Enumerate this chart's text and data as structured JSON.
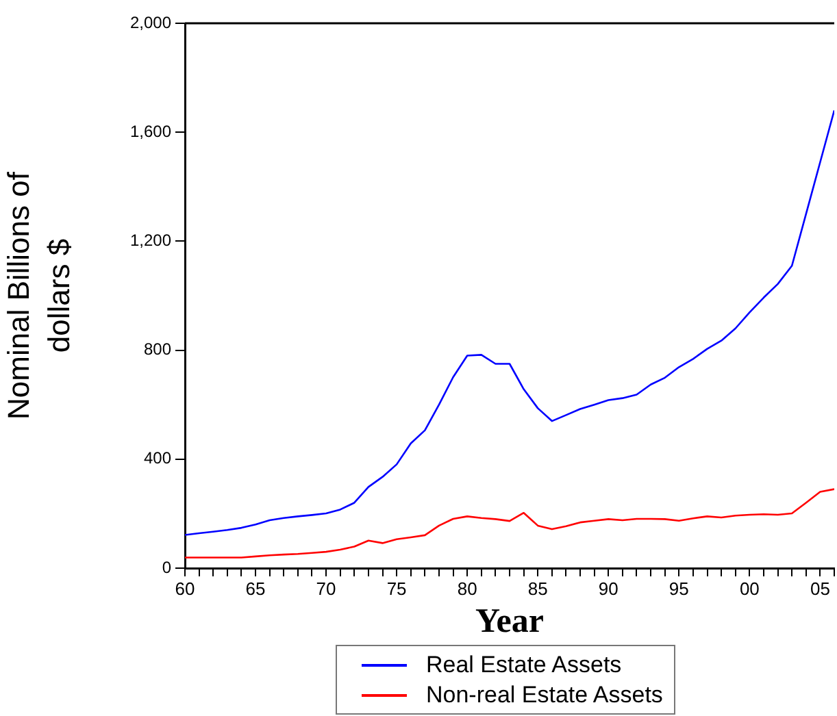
{
  "chart_data": {
    "type": "line",
    "xlabel": "Year",
    "ylabel": "Nominal Billions of dollars $",
    "x": [
      1960,
      1961,
      1962,
      1963,
      1964,
      1965,
      1966,
      1967,
      1968,
      1969,
      1970,
      1971,
      1972,
      1973,
      1974,
      1975,
      1976,
      1977,
      1978,
      1979,
      1980,
      1981,
      1982,
      1983,
      1984,
      1985,
      1986,
      1987,
      1988,
      1989,
      1990,
      1991,
      1992,
      1993,
      1994,
      1995,
      1996,
      1997,
      1998,
      1999,
      2000,
      2001,
      2002,
      2003,
      2004,
      2005,
      2006
    ],
    "series": [
      {
        "name": "Real Estate Assets",
        "color": "#0000ff",
        "values": [
          122,
          128,
          134,
          140,
          148,
          160,
          176,
          184,
          190,
          195,
          201,
          215,
          240,
          298,
          335,
          381,
          458,
          506,
          600,
          701,
          780,
          783,
          750,
          750,
          657,
          587,
          540,
          562,
          584,
          600,
          617,
          624,
          637,
          674,
          699,
          738,
          768,
          805,
          835,
          880,
          939,
          993,
          1043,
          1110,
          1300,
          1490,
          1680
        ]
      },
      {
        "name": "Non-real Estate Assets",
        "color": "#ff0000",
        "values": [
          39,
          39,
          39,
          39,
          39,
          43,
          47,
          50,
          52,
          56,
          60,
          68,
          79,
          101,
          92,
          106,
          113,
          121,
          156,
          181,
          190,
          184,
          180,
          173,
          203,
          156,
          143,
          154,
          168,
          174,
          180,
          176,
          181,
          181,
          180,
          174,
          183,
          190,
          186,
          193,
          196,
          198,
          196,
          201,
          240,
          280,
          290
        ]
      }
    ],
    "xlim": [
      1960,
      2006
    ],
    "xticks": [
      {
        "value": 1960,
        "label": "60"
      },
      {
        "value": 1961,
        "label": null
      },
      {
        "value": 1962,
        "label": null
      },
      {
        "value": 1963,
        "label": null
      },
      {
        "value": 1964,
        "label": null
      },
      {
        "value": 1965,
        "label": "65"
      },
      {
        "value": 1966,
        "label": null
      },
      {
        "value": 1967,
        "label": null
      },
      {
        "value": 1968,
        "label": null
      },
      {
        "value": 1969,
        "label": null
      },
      {
        "value": 1970,
        "label": "70"
      },
      {
        "value": 1971,
        "label": null
      },
      {
        "value": 1972,
        "label": null
      },
      {
        "value": 1973,
        "label": null
      },
      {
        "value": 1974,
        "label": null
      },
      {
        "value": 1975,
        "label": "75"
      },
      {
        "value": 1976,
        "label": null
      },
      {
        "value": 1977,
        "label": null
      },
      {
        "value": 1978,
        "label": null
      },
      {
        "value": 1979,
        "label": null
      },
      {
        "value": 1980,
        "label": "80"
      },
      {
        "value": 1981,
        "label": null
      },
      {
        "value": 1982,
        "label": null
      },
      {
        "value": 1983,
        "label": null
      },
      {
        "value": 1984,
        "label": null
      },
      {
        "value": 1985,
        "label": "85"
      },
      {
        "value": 1986,
        "label": null
      },
      {
        "value": 1987,
        "label": null
      },
      {
        "value": 1988,
        "label": null
      },
      {
        "value": 1989,
        "label": null
      },
      {
        "value": 1990,
        "label": "90"
      },
      {
        "value": 1991,
        "label": null
      },
      {
        "value": 1992,
        "label": null
      },
      {
        "value": 1993,
        "label": null
      },
      {
        "value": 1994,
        "label": null
      },
      {
        "value": 1995,
        "label": "95"
      },
      {
        "value": 1996,
        "label": null
      },
      {
        "value": 1997,
        "label": null
      },
      {
        "value": 1998,
        "label": null
      },
      {
        "value": 1999,
        "label": null
      },
      {
        "value": 2000,
        "label": "00"
      },
      {
        "value": 2001,
        "label": null
      },
      {
        "value": 2002,
        "label": null
      },
      {
        "value": 2003,
        "label": null
      },
      {
        "value": 2004,
        "label": null
      },
      {
        "value": 2005,
        "label": "05"
      },
      {
        "value": 2006,
        "label": null
      }
    ],
    "ylim": [
      0,
      2000
    ],
    "yticks": [
      0,
      {
        "value": 400,
        "label": "400"
      },
      {
        "value": 800,
        "label": "800"
      },
      {
        "value": 1200,
        "label": "1,200"
      },
      {
        "value": 1600,
        "label": "1,600"
      },
      {
        "value": 2000,
        "label": "2,000"
      }
    ],
    "grid": false,
    "legend": "bottom",
    "marker": "none",
    "line_style": "solid"
  }
}
